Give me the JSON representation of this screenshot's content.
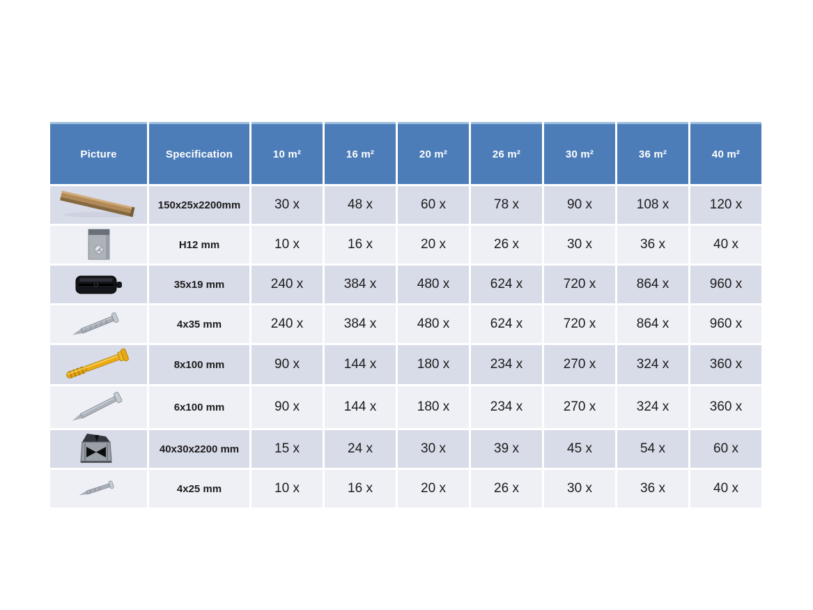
{
  "table": {
    "headers": [
      "Picture",
      "Specification",
      "10 m²",
      "16 m²",
      "20 m²",
      "26 m²",
      "30 m²",
      "36 m²",
      "40 m²"
    ],
    "rows": [
      {
        "icon": "decking-board",
        "spec": "150x25x2200mm",
        "values": [
          "30 x",
          "48 x",
          "60 x",
          "78 x",
          "90 x",
          "108 x",
          "120 x"
        ]
      },
      {
        "icon": "h12-clip",
        "spec": "H12 mm",
        "values": [
          "10 x",
          "16 x",
          "20 x",
          "26 x",
          "30 x",
          "36 x",
          "40 x"
        ]
      },
      {
        "icon": "black-clip",
        "spec": "35x19 mm",
        "values": [
          "240 x",
          "384 x",
          "480 x",
          "624 x",
          "720 x",
          "864 x",
          "960 x"
        ]
      },
      {
        "icon": "screw-4x35",
        "spec": "4x35 mm",
        "values": [
          "240 x",
          "384 x",
          "480 x",
          "624 x",
          "720 x",
          "864 x",
          "960 x"
        ]
      },
      {
        "icon": "hammer-plug",
        "spec": "8x100 mm",
        "values": [
          "90 x",
          "144 x",
          "180 x",
          "234 x",
          "270 x",
          "324 x",
          "360 x"
        ]
      },
      {
        "icon": "screw-6x100",
        "spec": "6x100 mm",
        "values": [
          "90 x",
          "144 x",
          "180 x",
          "234 x",
          "270 x",
          "324 x",
          "360 x"
        ]
      },
      {
        "icon": "joist-profile",
        "spec": "40x30x2200 mm",
        "values": [
          "15 x",
          "24 x",
          "30 x",
          "39 x",
          "45 x",
          "54 x",
          "60 x"
        ]
      },
      {
        "icon": "screw-4x25",
        "spec": "4x25 mm",
        "values": [
          "10 x",
          "16 x",
          "20 x",
          "26 x",
          "30 x",
          "36 x",
          "40 x"
        ]
      }
    ]
  },
  "colors": {
    "header_bg": "#4d7db8",
    "header_text": "#ffffff",
    "row_dark": "#d8dbe8",
    "row_light": "#eef0f6",
    "text": "#1c1c1c",
    "board_wood": "#b28a58",
    "plug_yellow": "#e8a812",
    "metal_grey": "#a9aeb7",
    "clip_black": "#141519"
  }
}
